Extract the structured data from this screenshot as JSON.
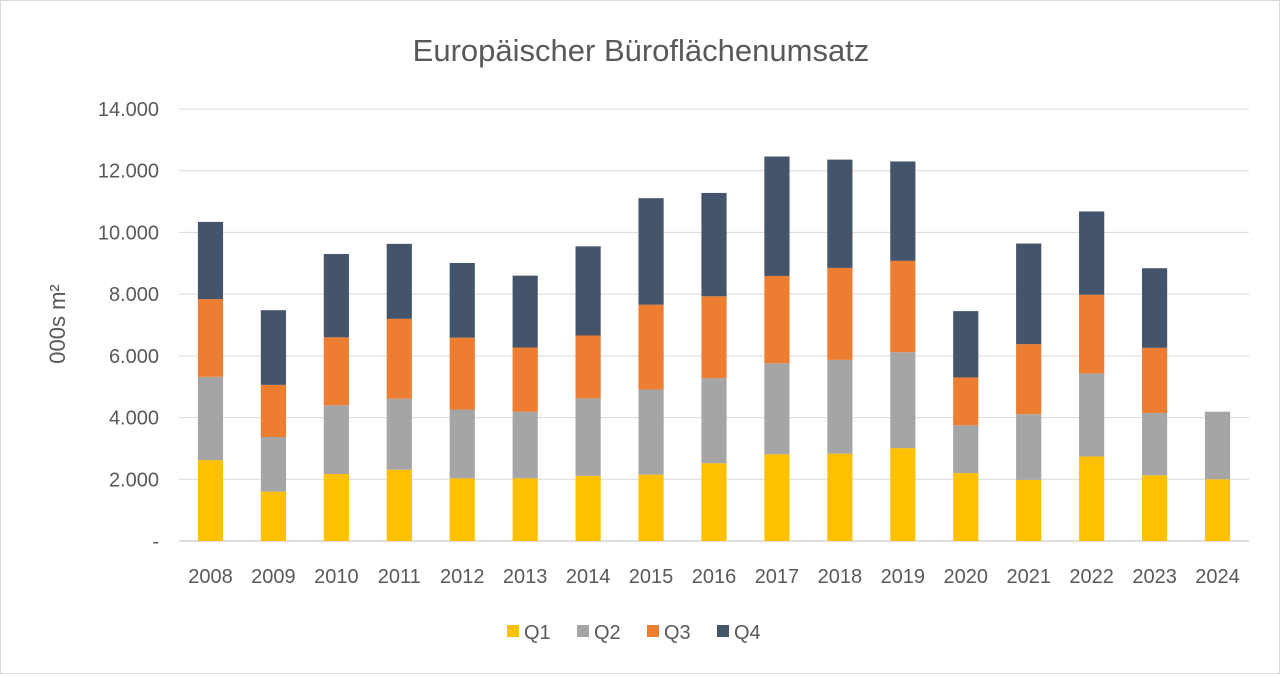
{
  "chart_data": {
    "type": "bar",
    "stacked": true,
    "title": "Europäischer Büroflächenumsatz",
    "xlabel": "",
    "ylabel": "000s m²",
    "ylim": [
      0,
      14000
    ],
    "ytick_values": [
      0,
      2000,
      4000,
      6000,
      8000,
      10000,
      12000,
      14000
    ],
    "ytick_labels": [
      "-",
      "2.000",
      "4.000",
      "6.000",
      "8.000",
      "10.000",
      "12.000",
      "14.000"
    ],
    "grid": true,
    "legend_position": "bottom",
    "categories": [
      "2008",
      "2009",
      "2010",
      "2011",
      "2012",
      "2013",
      "2014",
      "2015",
      "2016",
      "2017",
      "2018",
      "2019",
      "2020",
      "2021",
      "2022",
      "2023",
      "2024"
    ],
    "series": [
      {
        "name": "Q1",
        "color": "#ffc000",
        "values": [
          2620,
          1600,
          2170,
          2310,
          2030,
          2030,
          2110,
          2150,
          2520,
          2810,
          2830,
          3010,
          2200,
          1980,
          2740,
          2130,
          2000
        ]
      },
      {
        "name": "Q2",
        "color": "#a5a5a5",
        "values": [
          2700,
          1770,
          2230,
          2300,
          2230,
          2160,
          2510,
          2760,
          2760,
          2950,
          3040,
          3110,
          1550,
          2130,
          2690,
          2020,
          2190
        ]
      },
      {
        "name": "Q3",
        "color": "#ed7d31",
        "values": [
          2520,
          1690,
          2200,
          2590,
          2330,
          2080,
          2040,
          2750,
          2650,
          2830,
          2980,
          2960,
          1550,
          2270,
          2550,
          2110,
          0
        ]
      },
      {
        "name": "Q4",
        "color": "#44546a",
        "values": [
          2500,
          2420,
          2700,
          2430,
          2420,
          2330,
          2890,
          3450,
          3350,
          3870,
          3510,
          3220,
          2150,
          3260,
          2700,
          2580,
          0
        ]
      }
    ]
  }
}
